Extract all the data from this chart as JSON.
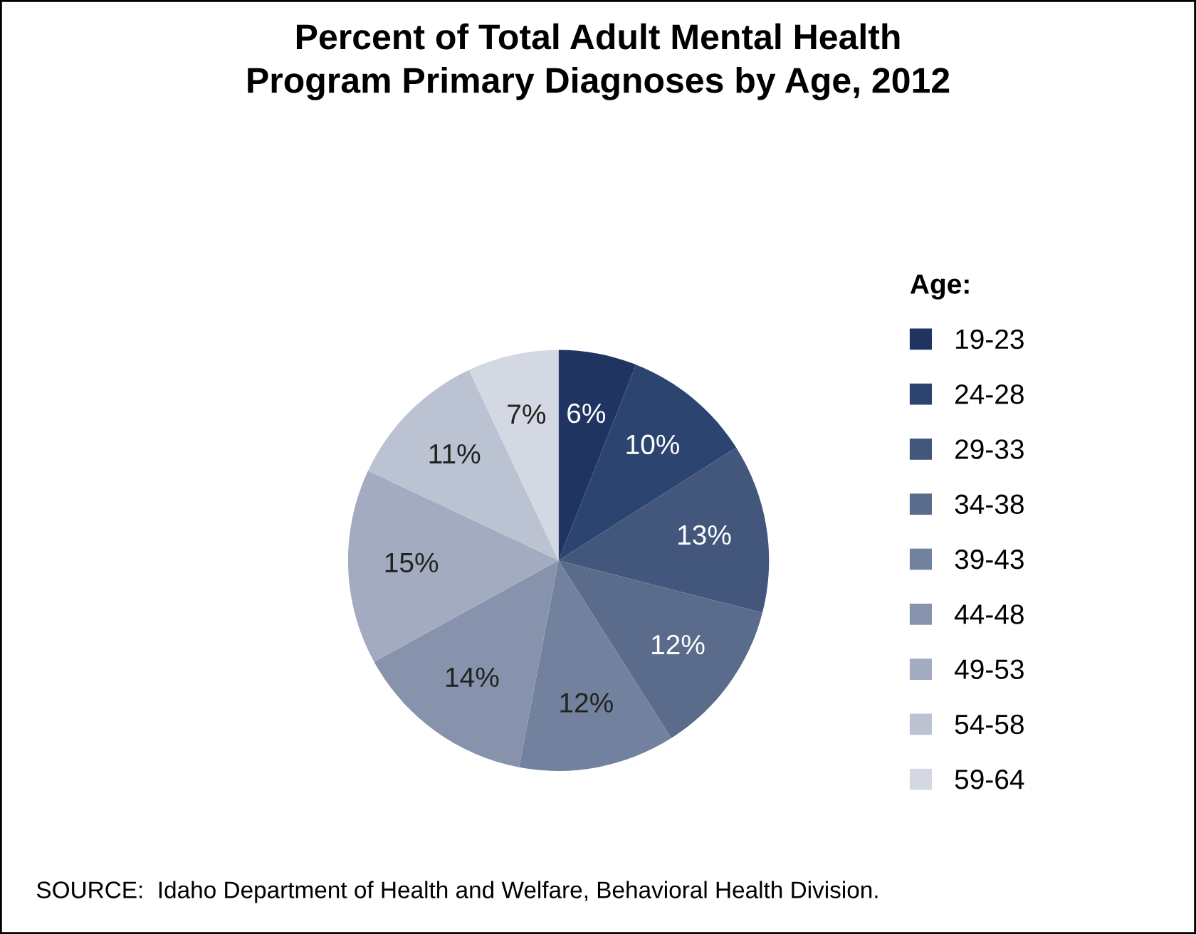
{
  "chart_data": {
    "type": "pie",
    "title": "Percent of Total Adult Mental Health\nProgram Primary Diagnoses by Age, 2012",
    "legend_title": "Age:",
    "categories": [
      "19-23",
      "24-28",
      "29-33",
      "34-38",
      "39-43",
      "44-48",
      "49-53",
      "54-58",
      "59-64"
    ],
    "values": [
      6,
      10,
      13,
      12,
      12,
      14,
      15,
      11,
      7
    ],
    "colors": [
      "#1f3461",
      "#2c4470",
      "#43577d",
      "#5a6b8c",
      "#72819d",
      "#8792ac",
      "#a2abbf",
      "#bbc2d1",
      "#d3d8e2"
    ],
    "value_labels": [
      "6%",
      "10%",
      "13%",
      "12%",
      "12%",
      "14%",
      "15%",
      "11%",
      "7%"
    ],
    "legend": "right",
    "annotations": [
      "SOURCE:  Idaho Department of Health and Welfare, Behavioral Health Division."
    ]
  }
}
